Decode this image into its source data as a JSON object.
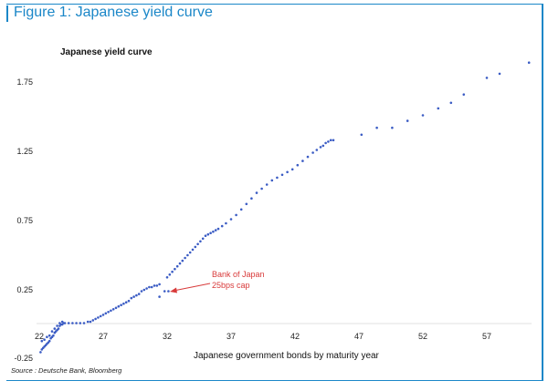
{
  "figure": {
    "title": "Figure 1: Japanese yield curve",
    "source": "Source : Deutsche Bank, Bloomberg"
  },
  "colors": {
    "accent": "#1b87c8",
    "points": "#3b5cc4",
    "annotation": "#d83a3a"
  },
  "chart_data": {
    "type": "scatter",
    "title": "Japanese yield curve",
    "xlabel": "Japanese government bonds by maturity year",
    "ylabel": "",
    "xlim": [
      21.5,
      60
    ],
    "ylim": [
      -0.25,
      1.9
    ],
    "xticks": [
      "22",
      "27",
      "32",
      "37",
      "42",
      "47",
      "52",
      "57"
    ],
    "yticks": [
      "1.75",
      "1.25",
      "0.75",
      "0.25",
      "-0.25"
    ],
    "grid": false,
    "legend": "none",
    "annotation": {
      "line1": "Bank of Japan",
      "line2": "25bps cap",
      "x": 31.8,
      "y": 0.245
    },
    "series": [
      {
        "values": [
          [
            22.1,
            -0.2
          ],
          [
            22.2,
            -0.18
          ],
          [
            22.3,
            -0.17
          ],
          [
            22.4,
            -0.16
          ],
          [
            22.5,
            -0.15
          ],
          [
            22.6,
            -0.14
          ],
          [
            22.7,
            -0.13
          ],
          [
            22.8,
            -0.12
          ],
          [
            22.9,
            -0.1
          ],
          [
            23.0,
            -0.09
          ],
          [
            23.1,
            -0.08
          ],
          [
            23.2,
            -0.06
          ],
          [
            23.3,
            -0.05
          ],
          [
            23.4,
            -0.04
          ],
          [
            23.5,
            -0.03
          ],
          [
            23.6,
            -0.01
          ],
          [
            23.7,
            0.0
          ],
          [
            23.8,
            0.0
          ],
          [
            23.9,
            0.01
          ],
          [
            22.2,
            -0.12
          ],
          [
            22.4,
            -0.11
          ],
          [
            22.6,
            -0.09
          ],
          [
            22.8,
            -0.08
          ],
          [
            23.0,
            -0.05
          ],
          [
            23.2,
            -0.03
          ],
          [
            23.4,
            -0.01
          ],
          [
            23.6,
            0.01
          ],
          [
            23.8,
            0.02
          ],
          [
            24.0,
            0.01
          ],
          [
            24.3,
            0.01
          ],
          [
            24.6,
            0.01
          ],
          [
            24.9,
            0.01
          ],
          [
            25.2,
            0.01
          ],
          [
            25.5,
            0.01
          ],
          [
            25.8,
            0.02
          ],
          [
            26.0,
            0.02
          ],
          [
            26.2,
            0.03
          ],
          [
            26.4,
            0.04
          ],
          [
            26.6,
            0.05
          ],
          [
            26.8,
            0.06
          ],
          [
            27.0,
            0.07
          ],
          [
            27.2,
            0.08
          ],
          [
            27.4,
            0.09
          ],
          [
            27.6,
            0.1
          ],
          [
            27.8,
            0.11
          ],
          [
            28.0,
            0.12
          ],
          [
            28.2,
            0.13
          ],
          [
            28.4,
            0.14
          ],
          [
            28.6,
            0.15
          ],
          [
            28.8,
            0.16
          ],
          [
            29.0,
            0.17
          ],
          [
            29.2,
            0.19
          ],
          [
            29.4,
            0.2
          ],
          [
            29.6,
            0.21
          ],
          [
            29.8,
            0.22
          ],
          [
            30.0,
            0.24
          ],
          [
            30.2,
            0.25
          ],
          [
            30.4,
            0.26
          ],
          [
            30.6,
            0.27
          ],
          [
            30.8,
            0.27
          ],
          [
            31.0,
            0.28
          ],
          [
            31.2,
            0.28
          ],
          [
            31.4,
            0.29
          ],
          [
            31.4,
            0.2
          ],
          [
            31.8,
            0.24
          ],
          [
            32.1,
            0.24
          ],
          [
            32.0,
            0.34
          ],
          [
            32.2,
            0.36
          ],
          [
            32.4,
            0.38
          ],
          [
            32.6,
            0.4
          ],
          [
            32.8,
            0.42
          ],
          [
            33.0,
            0.44
          ],
          [
            33.2,
            0.46
          ],
          [
            33.4,
            0.48
          ],
          [
            33.6,
            0.5
          ],
          [
            33.8,
            0.52
          ],
          [
            34.0,
            0.54
          ],
          [
            34.2,
            0.56
          ],
          [
            34.4,
            0.58
          ],
          [
            34.6,
            0.6
          ],
          [
            34.8,
            0.62
          ],
          [
            35.0,
            0.64
          ],
          [
            35.2,
            0.65
          ],
          [
            35.4,
            0.66
          ],
          [
            35.6,
            0.67
          ],
          [
            35.8,
            0.68
          ],
          [
            36.0,
            0.69
          ],
          [
            36.3,
            0.71
          ],
          [
            36.6,
            0.73
          ],
          [
            37.0,
            0.76
          ],
          [
            37.4,
            0.79
          ],
          [
            37.8,
            0.83
          ],
          [
            38.2,
            0.87
          ],
          [
            38.6,
            0.91
          ],
          [
            39.0,
            0.95
          ],
          [
            39.4,
            0.98
          ],
          [
            39.8,
            1.01
          ],
          [
            40.2,
            1.04
          ],
          [
            40.6,
            1.06
          ],
          [
            41.0,
            1.08
          ],
          [
            41.4,
            1.1
          ],
          [
            41.8,
            1.12
          ],
          [
            42.2,
            1.15
          ],
          [
            42.6,
            1.18
          ],
          [
            43.0,
            1.21
          ],
          [
            43.4,
            1.24
          ],
          [
            43.7,
            1.26
          ],
          [
            44.0,
            1.28
          ],
          [
            44.2,
            1.29
          ],
          [
            44.4,
            1.31
          ],
          [
            44.6,
            1.32
          ],
          [
            44.8,
            1.33
          ],
          [
            45.0,
            1.33
          ],
          [
            47.2,
            1.37
          ],
          [
            48.4,
            1.42
          ],
          [
            49.6,
            1.42
          ],
          [
            50.8,
            1.47
          ],
          [
            52.0,
            1.51
          ],
          [
            53.2,
            1.56
          ],
          [
            54.2,
            1.6
          ],
          [
            55.2,
            1.66
          ],
          [
            57.0,
            1.78
          ],
          [
            58.0,
            1.81
          ],
          [
            60.3,
            1.89
          ]
        ]
      }
    ]
  }
}
